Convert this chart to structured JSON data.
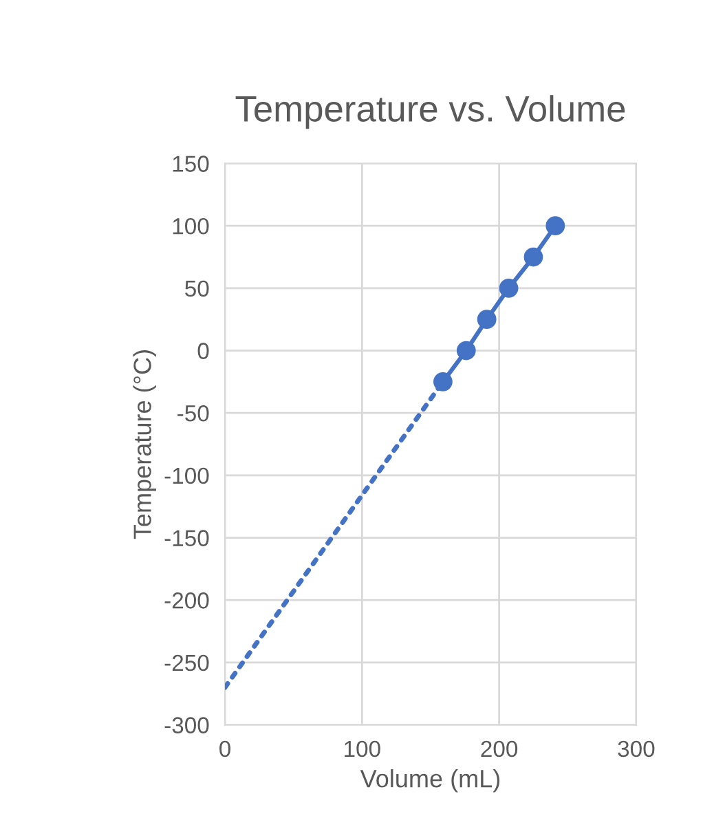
{
  "chart_data": {
    "type": "line",
    "title": "Temperature vs. Volume",
    "xlabel": "Volume (mL)",
    "ylabel": "Temperature (°C)",
    "series": [
      {
        "color": "#4472c4",
        "x": [
          159,
          176,
          191,
          207,
          225,
          241
        ],
        "values": [
          -25,
          0,
          25,
          50,
          75,
          100
        ],
        "marker": "circle",
        "line_style": "solid"
      },
      {
        "color": "#4472c4",
        "x": [
          0,
          159
        ],
        "values": [
          -270,
          -25
        ],
        "marker": "none",
        "line_style": "dotted"
      }
    ],
    "xlim": [
      0,
      300
    ],
    "xticks": [
      0,
      100,
      200,
      300
    ],
    "ylim": [
      -300,
      150
    ],
    "yticks": [
      -300,
      -250,
      -200,
      -150,
      -100,
      -50,
      0,
      50,
      100,
      150
    ],
    "grid": true,
    "legend": false
  }
}
